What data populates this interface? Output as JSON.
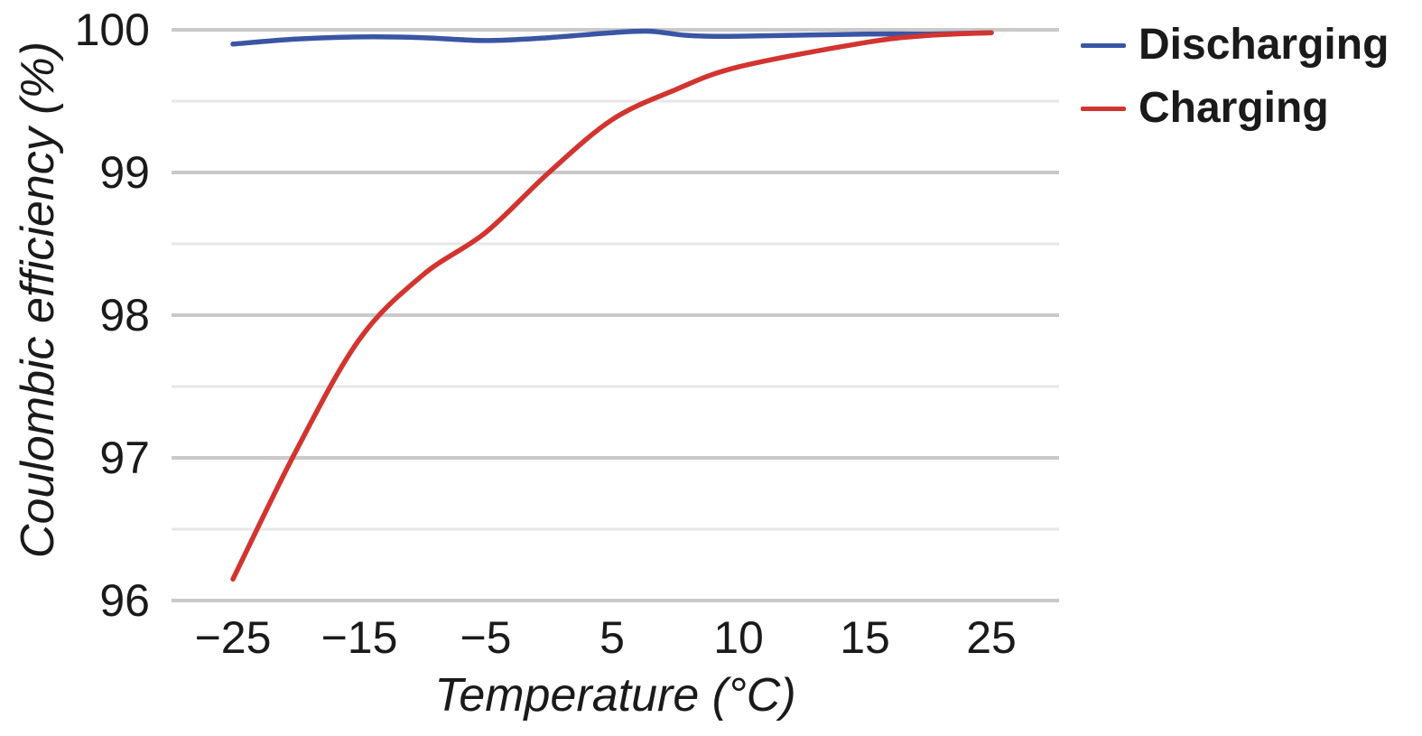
{
  "colors": {
    "background": "#ffffff",
    "grid_major": "#c9c9c9",
    "grid_minor": "#e7e7e7",
    "text": "#1a1a1a",
    "discharging_line": "#3a55a5",
    "charging_line": "#d23430"
  },
  "chart_data": {
    "type": "line",
    "title": "",
    "xlabel": "Temperature (°C)",
    "ylabel": "Coulombic efficiency (%)",
    "x_axis_type": "categorical-equal-spacing",
    "x_tick_values": [
      -25,
      -15,
      -5,
      5,
      10,
      15,
      25
    ],
    "x_tick_labels": [
      "−25",
      "−15",
      "−5",
      "5",
      "10",
      "15",
      "25"
    ],
    "ylim": [
      96,
      100
    ],
    "y_major_ticks": [
      100,
      99,
      98,
      97,
      96
    ],
    "y_tick_labels": [
      "100",
      "99",
      "98",
      "97",
      "96"
    ],
    "y_minor_gridlines": [
      99.5,
      98.5,
      97.5,
      96.5
    ],
    "grid": "horizontal-only",
    "legend": {
      "position": "top-right",
      "entries": [
        {
          "label": "Discharging",
          "color": "#3a55a5"
        },
        {
          "label": "Charging",
          "color": "#d23430"
        }
      ]
    },
    "series": [
      {
        "name": "Discharging",
        "color": "#3a55a5",
        "points": [
          [
            -25,
            99.9
          ],
          [
            -20,
            99.935
          ],
          [
            -15,
            99.95
          ],
          [
            -10,
            99.945
          ],
          [
            -5,
            99.925
          ],
          [
            0,
            99.945
          ],
          [
            5,
            99.98
          ],
          [
            6.5,
            99.99
          ],
          [
            8,
            99.96
          ],
          [
            10,
            99.955
          ],
          [
            15,
            99.97
          ],
          [
            20,
            99.97
          ],
          [
            25,
            99.98
          ]
        ]
      },
      {
        "name": "Charging",
        "color": "#d23430",
        "points": [
          [
            -25,
            96.15
          ],
          [
            -20,
            97.05
          ],
          [
            -15,
            97.83
          ],
          [
            -10,
            98.28
          ],
          [
            -5,
            98.58
          ],
          [
            0,
            99.0
          ],
          [
            5,
            99.37
          ],
          [
            7.5,
            99.58
          ],
          [
            10,
            99.74
          ],
          [
            15,
            99.91
          ],
          [
            20,
            99.96
          ],
          [
            25,
            99.98
          ]
        ]
      }
    ]
  }
}
